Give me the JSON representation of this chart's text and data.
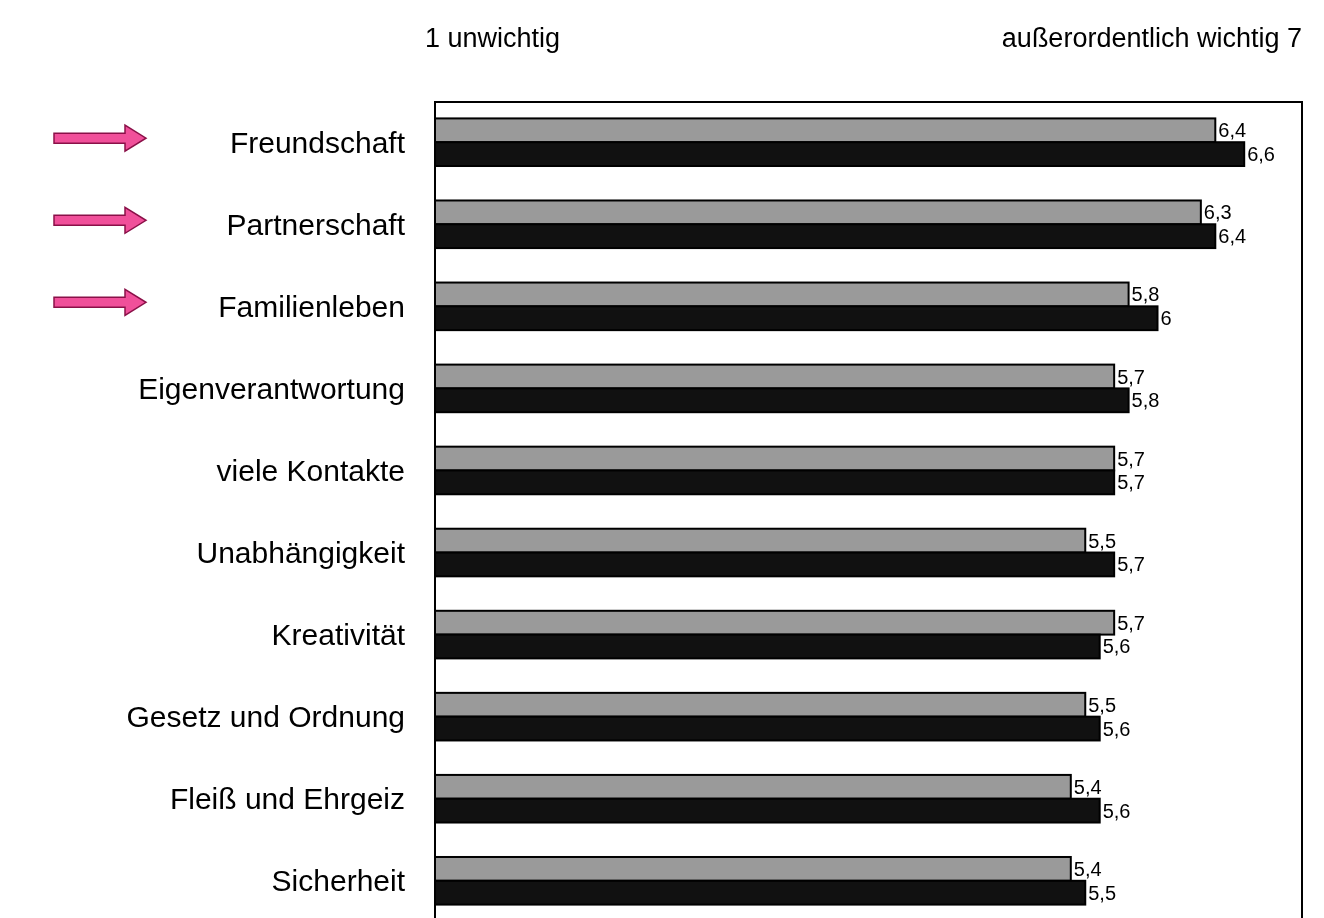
{
  "chart_data": {
    "type": "bar",
    "orientation": "horizontal",
    "categories": [
      "Freundschaft",
      "Partnerschaft",
      "Familienleben",
      "Eigenverantwortung",
      "viele Kontakte",
      "Unabhängigkeit",
      "Kreativität",
      "Gesetz und Ordnung",
      "Fleiß und Ehrgeiz",
      "Sicherheit"
    ],
    "xlim": [
      1,
      7
    ],
    "annotations": [
      "1 unwichtig",
      "außerordentlich wichtig 7"
    ],
    "series": [
      {
        "color": "#9a9a9a",
        "values": [
          6.4,
          6.3,
          5.8,
          5.7,
          5.7,
          5.5,
          5.7,
          5.5,
          5.4,
          5.4
        ],
        "value_labels": [
          "6,4",
          "6,3",
          "5,8",
          "5,7",
          "5,7",
          "5,5",
          "5,7",
          "5,5",
          "5,4",
          "5,4"
        ]
      },
      {
        "color": "#111111",
        "values": [
          6.6,
          6.4,
          6,
          5.8,
          5.7,
          5.7,
          5.6,
          5.6,
          5.6,
          5.5
        ],
        "value_labels": [
          "6,6",
          "6,4",
          "6",
          "5,8",
          "5,7",
          "5,7",
          "5,6",
          "5,6",
          "5,6",
          "5,5"
        ]
      }
    ]
  }
}
